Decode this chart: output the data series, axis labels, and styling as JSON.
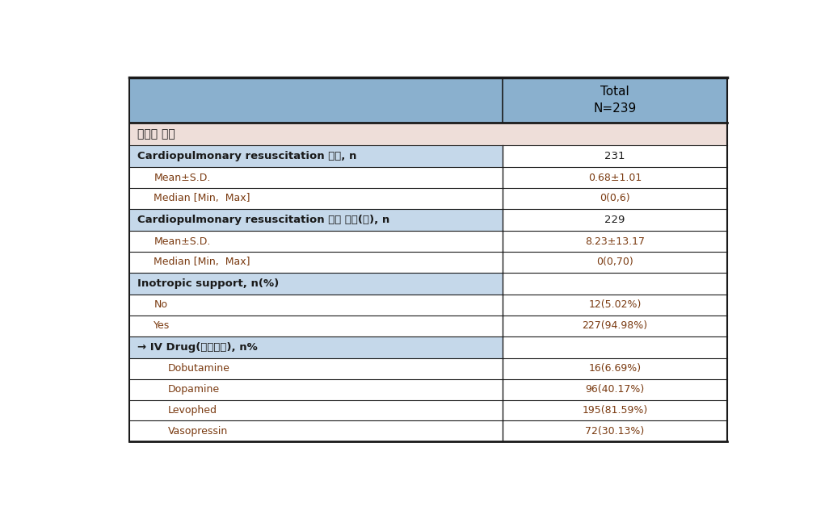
{
  "title_col2": "Total\nN=239",
  "header_bg": "#8ab0ce",
  "section_bg": "#c5d8ea",
  "subheader_bg": "#eeded9",
  "white_bg": "#ffffff",
  "border_color": "#1a1a1a",
  "col_split": 0.625,
  "rows": [
    {
      "label": "공여자 정보",
      "value": "",
      "type": "section_header",
      "indent": 0
    },
    {
      "label": "Cardiopulmonary resuscitation 횟수, n",
      "value": "231",
      "type": "subheader",
      "indent": 0
    },
    {
      "label": "Mean±S.D.",
      "value": "0.68±1.01",
      "type": "data",
      "indent": 1
    },
    {
      "label": "Median [Min,  Max]",
      "value": "0(0,6)",
      "type": "data",
      "indent": 1
    },
    {
      "label": "Cardiopulmonary resuscitation 추정 시간(분), n",
      "value": "229",
      "type": "subheader",
      "indent": 0
    },
    {
      "label": "Mean±S.D.",
      "value": "8.23±13.17",
      "type": "data",
      "indent": 1
    },
    {
      "label": "Median [Min,  Max]",
      "value": "0(0,70)",
      "type": "data",
      "indent": 1
    },
    {
      "label": "Inotropic support, n(%)",
      "value": "",
      "type": "subheader",
      "indent": 0
    },
    {
      "label": "No",
      "value": "12(5.02%)",
      "type": "data",
      "indent": 1
    },
    {
      "label": "Yes",
      "value": "227(94.98%)",
      "type": "data",
      "indent": 1
    },
    {
      "label": "→ IV Drug(중복응답), n%",
      "value": "",
      "type": "subheader",
      "indent": 0
    },
    {
      "label": "Dobutamine",
      "value": "16(6.69%)",
      "type": "data",
      "indent": 2
    },
    {
      "label": "Dopamine",
      "value": "96(40.17%)",
      "type": "data",
      "indent": 2
    },
    {
      "label": "Levophed",
      "value": "195(81.59%)",
      "type": "data",
      "indent": 2
    },
    {
      "label": "Vasopressin",
      "value": "72(30.13%)",
      "type": "data",
      "indent": 2
    }
  ],
  "label_color_subheader": "#1a1a1a",
  "label_color_data": "#7a3a10",
  "label_color_section": "#1a1a1a",
  "value_color_subheader": "#1a1a1a",
  "value_color_data": "#7a3a10",
  "font_size_header": 11,
  "font_size_section": 10,
  "font_size_subheader": 9.5,
  "font_size_data": 9
}
